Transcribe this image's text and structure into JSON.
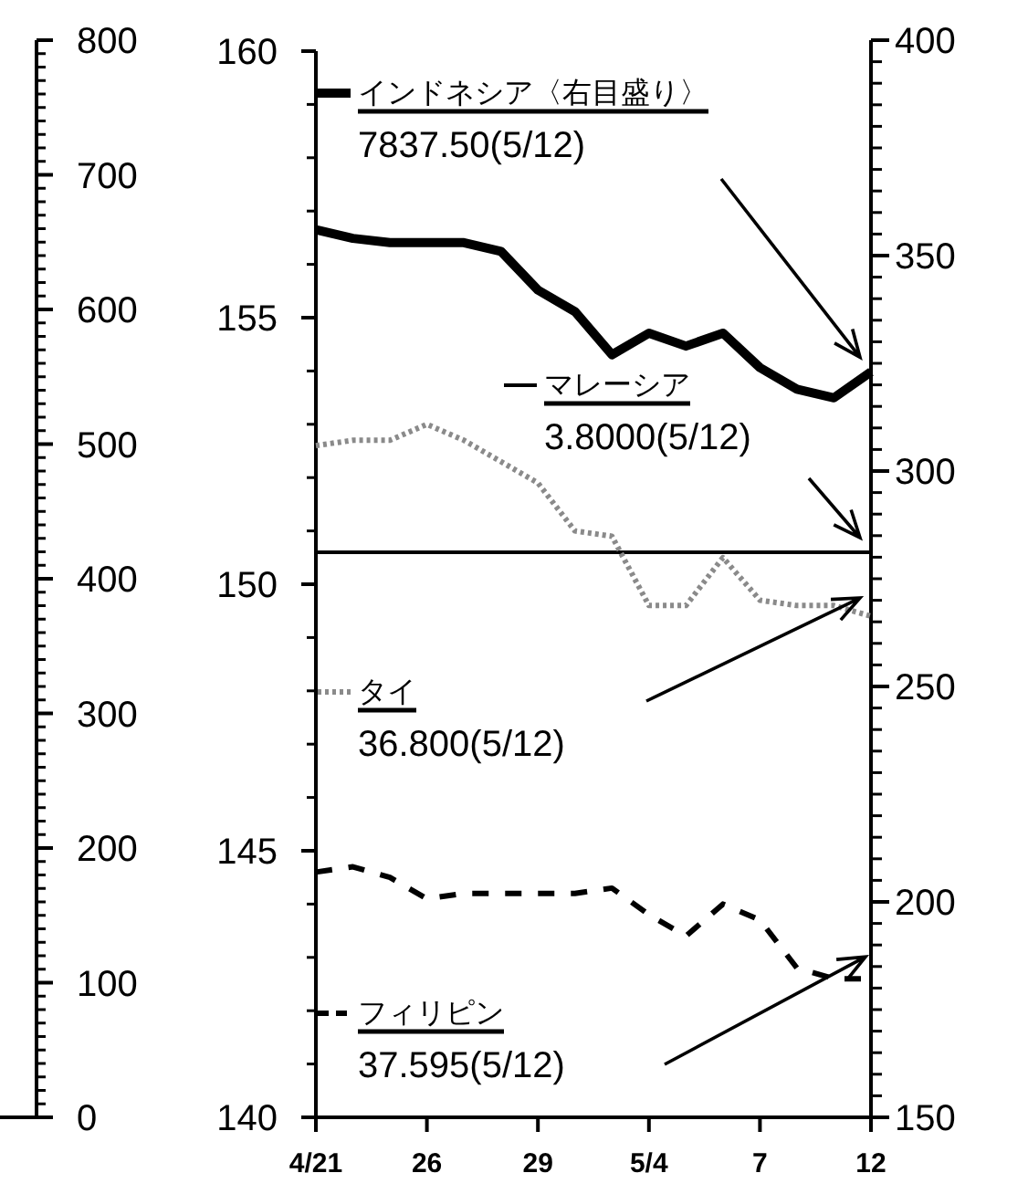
{
  "chart_data": {
    "type": "line",
    "categories": [
      "4/21",
      null,
      null,
      "26",
      null,
      null,
      "29",
      null,
      null,
      "5/4",
      null,
      null,
      "7",
      null,
      null,
      "12"
    ],
    "series": [
      {
        "name": "インドネシア〈右目盛り〉",
        "color": "#000000",
        "axis": "y2",
        "line_style": "solid",
        "values": [
          356,
          354,
          353,
          353,
          353,
          351,
          342,
          337,
          327,
          332,
          329,
          332,
          324,
          319,
          317,
          323
        ]
      },
      {
        "name": "マレーシア",
        "color": "#000000",
        "line_style": "solid",
        "values": [
          150.6,
          150.6,
          150.6,
          150.6,
          150.6,
          150.6,
          150.6,
          150.6,
          150.6,
          150.6,
          150.6,
          150.6,
          150.6,
          150.6,
          150.6,
          150.6
        ]
      },
      {
        "name": "タイ",
        "color": "#8a8a8a",
        "line_style": "dotted",
        "values": [
          152.6,
          152.7,
          152.7,
          153.0,
          152.7,
          152.3,
          151.9,
          151.0,
          150.9,
          149.6,
          149.6,
          150.5,
          149.7,
          149.6,
          149.6,
          149.4
        ]
      },
      {
        "name": "フィリピン",
        "color": "#000000",
        "line_style": "dashed",
        "values": [
          144.6,
          144.7,
          144.5,
          144.1,
          144.2,
          144.2,
          144.2,
          144.2,
          144.3,
          143.8,
          143.4,
          144.0,
          143.7,
          142.8,
          142.6,
          142.6
        ]
      }
    ],
    "ylim": [
      140,
      160
    ],
    "yticks": [
      140,
      145,
      150,
      155,
      160
    ],
    "y2lim": [
      150,
      400
    ],
    "y2ticks": [
      150,
      200,
      250,
      300,
      350,
      400
    ],
    "y3lim": [
      0,
      800
    ],
    "y3ticks": [
      0,
      100,
      200,
      300,
      400,
      500,
      600,
      700,
      800
    ],
    "annotations": [
      "7837.50(5/12)",
      "3.8000(5/12)",
      "36.800(5/12)",
      "37.595(5/12)"
    ],
    "legend": "left"
  }
}
